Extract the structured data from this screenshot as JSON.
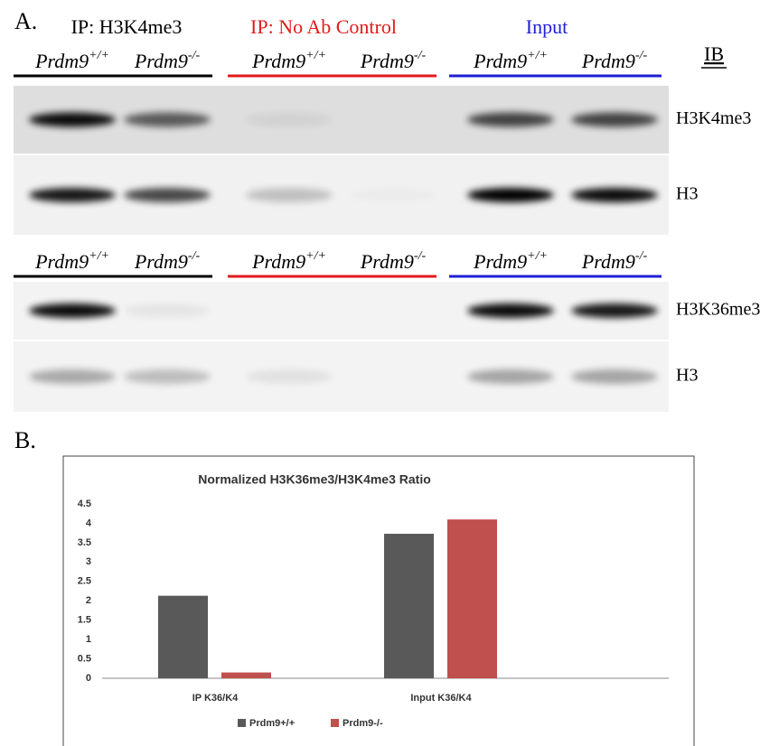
{
  "panel_a": {
    "label": "A.",
    "groups": [
      {
        "name": "IP: H3K4me3",
        "color": "#000000"
      },
      {
        "name": "IP: No Ab Control",
        "color": "#e31a1c"
      },
      {
        "name": "Input",
        "color": "#1f1fd6"
      }
    ],
    "lanes": [
      {
        "gene": "Prdm9",
        "genotype": "+/+"
      },
      {
        "gene": "Prdm9",
        "genotype": "-/-"
      }
    ],
    "ib_label": "IB",
    "blots": [
      "H3K4me3",
      "H3",
      "H3K36me3",
      "H3"
    ]
  },
  "panel_b_label": "B.",
  "chart_data": {
    "type": "bar",
    "title": "Normalized H3K36me3/H3K4me3 Ratio",
    "categories": [
      "IP K36/K4",
      "Input K36/K4"
    ],
    "series": [
      {
        "name": "Prdm9+/+",
        "color": "#595959",
        "values": [
          2.13,
          3.73
        ]
      },
      {
        "name": "Prdm9-/-",
        "color": "#c0504d",
        "values": [
          0.15,
          4.1
        ]
      }
    ],
    "ylim": [
      0,
      4.5
    ],
    "yticks": [
      0,
      0.5,
      1,
      1.5,
      2,
      2.5,
      3,
      3.5,
      4,
      4.5
    ],
    "grid": false,
    "legend": "bottom"
  }
}
